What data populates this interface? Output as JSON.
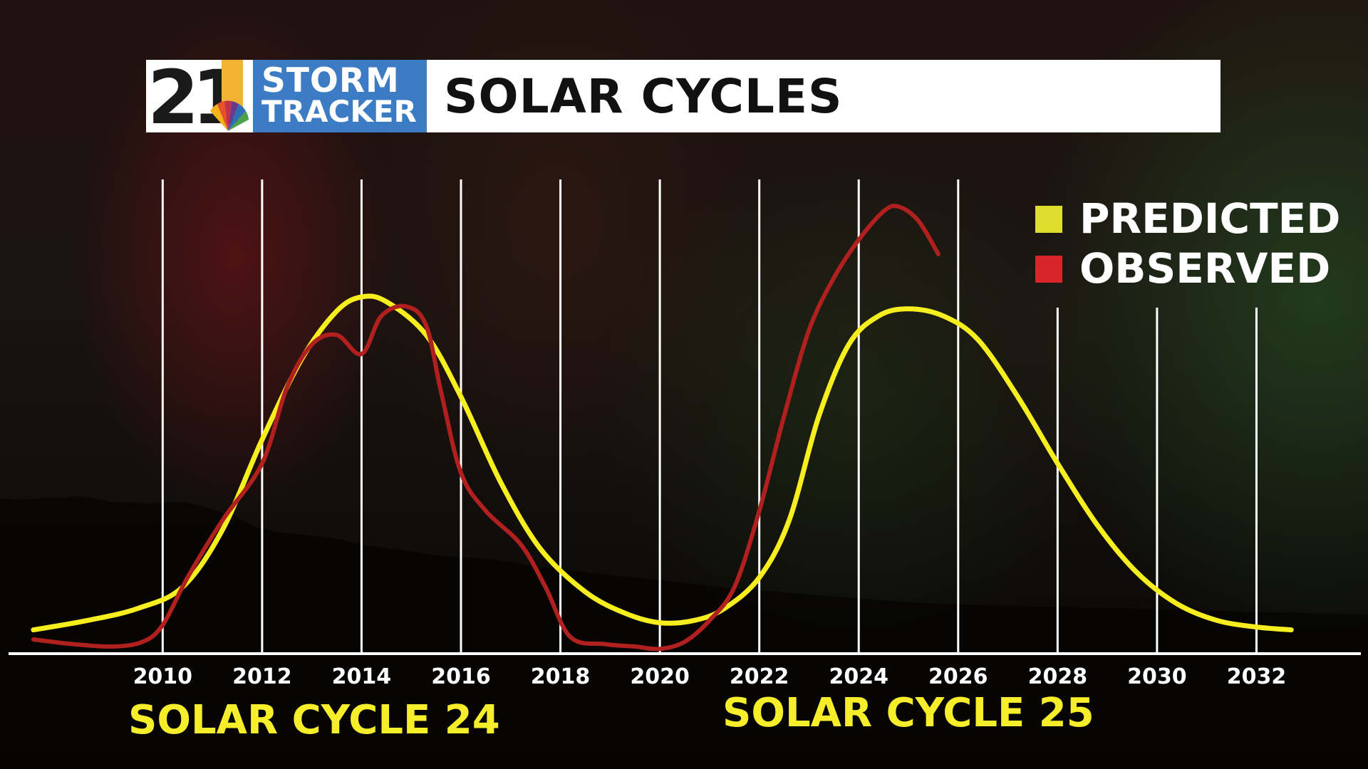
{
  "header": {
    "logo_number": "21",
    "logo_line1": "STORM",
    "logo_line2": "TRACKER",
    "title": "SOLAR CYCLES"
  },
  "colors": {
    "predicted": "#f6ee1e",
    "observed": "#b0201e",
    "legend_predicted_swatch": "#dede2e",
    "legend_observed_swatch": "#d8242a",
    "gridline": "#ffffff"
  },
  "chart_data": {
    "type": "line",
    "x_tick_labels": [
      "2010",
      "2012",
      "2014",
      "2016",
      "2018",
      "2020",
      "2022",
      "2024",
      "2026",
      "2028",
      "2030",
      "2032"
    ],
    "xlim": [
      2006.9,
      2034.1
    ],
    "ylim": [
      0,
      100
    ],
    "grid": "vertical lines at each tick year",
    "legend_position": "top-right",
    "annotations": [
      "SOLAR CYCLE 24",
      "SOLAR CYCLE 25"
    ],
    "series": [
      {
        "name": "PREDICTED",
        "x": [
          2007.4,
          2008.5,
          2009.5,
          2010.4,
          2011.2,
          2012.0,
          2012.8,
          2013.5,
          2014.0,
          2014.5,
          2015.3,
          2016.0,
          2016.8,
          2017.6,
          2018.5,
          2019.3,
          2020.0,
          2020.7,
          2021.3,
          2022.0,
          2022.6,
          2023.2,
          2023.8,
          2024.4,
          2025.0,
          2025.7,
          2026.4,
          2027.2,
          2028.0,
          2028.8,
          2029.6,
          2030.4,
          2031.2,
          2032.0,
          2032.7
        ],
        "values": [
          5,
          7,
          9.5,
          14,
          26,
          45,
          62,
          72,
          75,
          74,
          67,
          54,
          36,
          22,
          13,
          8.5,
          6.5,
          7,
          9.5,
          16,
          28,
          50,
          65,
          71,
          72.5,
          71,
          66,
          54,
          40,
          27,
          17,
          10.5,
          7,
          5.6,
          5
        ]
      },
      {
        "name": "OBSERVED",
        "x": [
          2007.4,
          2008.2,
          2009.0,
          2009.6,
          2010.0,
          2010.5,
          2011.2,
          2012.0,
          2012.5,
          2013.0,
          2013.5,
          2014.0,
          2014.4,
          2014.9,
          2015.3,
          2015.6,
          2016.0,
          2016.5,
          2017.2,
          2017.7,
          2018.2,
          2018.9,
          2019.5,
          2020.0,
          2020.5,
          2021.0,
          2021.5,
          2022.0,
          2022.5,
          2023.0,
          2023.5,
          2024.0,
          2024.5,
          2024.8,
          2025.2,
          2025.6
        ],
        "values": [
          3,
          2,
          1.5,
          2.5,
          6,
          16,
          28,
          40,
          56,
          65,
          67,
          63,
          71,
          73,
          69,
          55,
          38,
          30,
          23,
          14,
          3.5,
          2,
          1.5,
          1,
          2.5,
          7,
          14,
          30,
          50,
          68,
          79,
          87,
          93,
          94,
          91,
          84
        ]
      }
    ]
  }
}
